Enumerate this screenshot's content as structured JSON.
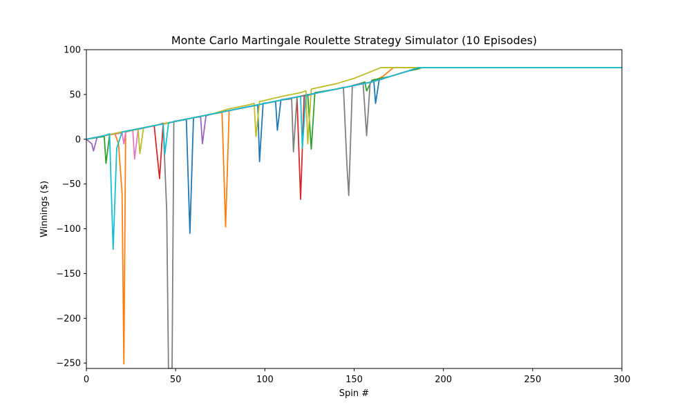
{
  "chart_data": {
    "type": "line",
    "title": "Monte Carlo Martingale Roulette Strategy Simulator (10 Episodes)",
    "xlabel": "Spin #",
    "ylabel": "Winnings ($)",
    "xlim": [
      0,
      300
    ],
    "ylim": [
      -256,
      100
    ],
    "xticks": [
      0,
      50,
      100,
      150,
      200,
      250,
      300
    ],
    "yticks": [
      -250,
      -200,
      -150,
      -100,
      -50,
      0,
      50,
      100
    ],
    "grid": false,
    "legend": "none",
    "series": [
      {
        "color": "#1f77b4",
        "points": [
          [
            0,
            0
          ],
          [
            10,
            4
          ],
          [
            20,
            8
          ],
          [
            30,
            12
          ],
          [
            40,
            16
          ],
          [
            50,
            20
          ],
          [
            56,
            22
          ],
          [
            58,
            -105
          ],
          [
            60,
            24
          ],
          [
            70,
            28
          ],
          [
            80,
            32
          ],
          [
            90,
            36
          ],
          [
            96,
            38
          ],
          [
            97,
            -25
          ],
          [
            99,
            40
          ],
          [
            106,
            42
          ],
          [
            107,
            10
          ],
          [
            109,
            44
          ],
          [
            120,
            48
          ],
          [
            130,
            52
          ],
          [
            140,
            56
          ],
          [
            150,
            60
          ],
          [
            160,
            64
          ],
          [
            161,
            66
          ],
          [
            162,
            40
          ],
          [
            164,
            66
          ],
          [
            170,
            70
          ],
          [
            180,
            76
          ],
          [
            186,
            80
          ],
          [
            300,
            80
          ]
        ]
      },
      {
        "color": "#ff7f0e",
        "points": [
          [
            0,
            0
          ],
          [
            10,
            4
          ],
          [
            16,
            6
          ],
          [
            18,
            -5
          ],
          [
            20,
            -60
          ],
          [
            21,
            -251
          ],
          [
            22,
            8
          ],
          [
            30,
            12
          ],
          [
            40,
            16
          ],
          [
            50,
            20
          ],
          [
            60,
            24
          ],
          [
            70,
            28
          ],
          [
            76,
            30
          ],
          [
            78,
            -98
          ],
          [
            80,
            32
          ],
          [
            90,
            36
          ],
          [
            100,
            40
          ],
          [
            110,
            44
          ],
          [
            120,
            48
          ],
          [
            130,
            52
          ],
          [
            140,
            56
          ],
          [
            150,
            60
          ],
          [
            160,
            64
          ],
          [
            166,
            70
          ],
          [
            172,
            80
          ],
          [
            300,
            80
          ]
        ]
      },
      {
        "color": "#2ca02c",
        "points": [
          [
            0,
            0
          ],
          [
            10,
            3
          ],
          [
            11,
            -27
          ],
          [
            13,
            5
          ],
          [
            20,
            8
          ],
          [
            30,
            12
          ],
          [
            40,
            16
          ],
          [
            50,
            20
          ],
          [
            60,
            24
          ],
          [
            70,
            28
          ],
          [
            80,
            32
          ],
          [
            90,
            36
          ],
          [
            100,
            40
          ],
          [
            110,
            44
          ],
          [
            120,
            48
          ],
          [
            124,
            50
          ],
          [
            126,
            -11
          ],
          [
            128,
            52
          ],
          [
            140,
            56
          ],
          [
            150,
            60
          ],
          [
            156,
            64
          ],
          [
            157,
            54
          ],
          [
            160,
            66
          ],
          [
            170,
            70
          ],
          [
            180,
            76
          ],
          [
            185,
            78
          ],
          [
            188,
            80
          ],
          [
            300,
            80
          ]
        ]
      },
      {
        "color": "#d62728",
        "points": [
          [
            0,
            0
          ],
          [
            10,
            4
          ],
          [
            20,
            8
          ],
          [
            30,
            12
          ],
          [
            38,
            15
          ],
          [
            41,
            -44
          ],
          [
            43,
            17
          ],
          [
            50,
            20
          ],
          [
            60,
            24
          ],
          [
            70,
            28
          ],
          [
            80,
            32
          ],
          [
            90,
            36
          ],
          [
            100,
            40
          ],
          [
            110,
            44
          ],
          [
            118,
            47
          ],
          [
            120,
            -67
          ],
          [
            122,
            48
          ],
          [
            130,
            52
          ],
          [
            140,
            56
          ],
          [
            150,
            60
          ],
          [
            160,
            64
          ],
          [
            170,
            70
          ],
          [
            180,
            76
          ],
          [
            186,
            80
          ],
          [
            300,
            80
          ]
        ]
      },
      {
        "color": "#9467bd",
        "points": [
          [
            0,
            0
          ],
          [
            3,
            -5
          ],
          [
            4,
            -13
          ],
          [
            6,
            2
          ],
          [
            10,
            4
          ],
          [
            20,
            8
          ],
          [
            30,
            12
          ],
          [
            40,
            16
          ],
          [
            50,
            20
          ],
          [
            60,
            24
          ],
          [
            64,
            25
          ],
          [
            65,
            -5
          ],
          [
            67,
            26
          ],
          [
            70,
            28
          ],
          [
            80,
            32
          ],
          [
            90,
            36
          ],
          [
            100,
            40
          ],
          [
            110,
            44
          ],
          [
            120,
            48
          ],
          [
            130,
            52
          ],
          [
            140,
            56
          ],
          [
            150,
            60
          ],
          [
            160,
            64
          ],
          [
            170,
            70
          ],
          [
            180,
            76
          ],
          [
            186,
            80
          ],
          [
            300,
            80
          ]
        ]
      },
      {
        "color": "#8c564b",
        "points": [
          [
            0,
            0
          ],
          [
            10,
            4
          ],
          [
            20,
            8
          ],
          [
            30,
            12
          ],
          [
            40,
            16
          ],
          [
            50,
            20
          ],
          [
            60,
            24
          ],
          [
            70,
            28
          ],
          [
            80,
            32
          ],
          [
            90,
            36
          ],
          [
            100,
            40
          ],
          [
            110,
            44
          ],
          [
            120,
            48
          ],
          [
            130,
            52
          ],
          [
            140,
            56
          ],
          [
            150,
            60
          ],
          [
            160,
            64
          ],
          [
            170,
            70
          ],
          [
            180,
            76
          ],
          [
            186,
            80
          ],
          [
            300,
            80
          ]
        ]
      },
      {
        "color": "#e377c2",
        "points": [
          [
            0,
            0
          ],
          [
            10,
            4
          ],
          [
            20,
            7
          ],
          [
            21,
            -5
          ],
          [
            22,
            8
          ],
          [
            26,
            10
          ],
          [
            27,
            -22
          ],
          [
            29,
            11
          ],
          [
            40,
            16
          ],
          [
            50,
            20
          ],
          [
            60,
            24
          ],
          [
            70,
            28
          ],
          [
            80,
            32
          ],
          [
            90,
            36
          ],
          [
            100,
            40
          ],
          [
            110,
            44
          ],
          [
            120,
            48
          ],
          [
            130,
            52
          ],
          [
            140,
            56
          ],
          [
            150,
            60
          ],
          [
            160,
            64
          ],
          [
            170,
            70
          ],
          [
            180,
            76
          ],
          [
            186,
            80
          ],
          [
            300,
            80
          ]
        ]
      },
      {
        "color": "#7f7f7f",
        "points": [
          [
            0,
            0
          ],
          [
            10,
            4
          ],
          [
            20,
            8
          ],
          [
            30,
            12
          ],
          [
            40,
            16
          ],
          [
            43,
            18
          ],
          [
            45,
            -80
          ],
          [
            46,
            -256
          ],
          [
            48,
            -256
          ],
          [
            49,
            20
          ],
          [
            60,
            24
          ],
          [
            70,
            28
          ],
          [
            80,
            32
          ],
          [
            90,
            36
          ],
          [
            100,
            40
          ],
          [
            110,
            44
          ],
          [
            115,
            45
          ],
          [
            116,
            -14
          ],
          [
            118,
            47
          ],
          [
            130,
            52
          ],
          [
            140,
            56
          ],
          [
            144,
            58
          ],
          [
            146,
            -30
          ],
          [
            147,
            -63
          ],
          [
            149,
            60
          ],
          [
            155,
            63
          ],
          [
            157,
            4
          ],
          [
            159,
            64
          ],
          [
            170,
            70
          ],
          [
            180,
            76
          ],
          [
            186,
            80
          ],
          [
            300,
            80
          ]
        ]
      },
      {
        "color": "#bcbd22",
        "points": [
          [
            0,
            0
          ],
          [
            10,
            4
          ],
          [
            20,
            8
          ],
          [
            29,
            11
          ],
          [
            30,
            -16
          ],
          [
            32,
            13
          ],
          [
            40,
            16
          ],
          [
            50,
            20
          ],
          [
            60,
            24
          ],
          [
            70,
            28
          ],
          [
            80,
            34
          ],
          [
            90,
            38
          ],
          [
            94,
            40
          ],
          [
            95,
            3
          ],
          [
            97,
            42
          ],
          [
            110,
            48
          ],
          [
            120,
            52
          ],
          [
            123,
            54
          ],
          [
            124,
            -5
          ],
          [
            126,
            56
          ],
          [
            140,
            62
          ],
          [
            150,
            68
          ],
          [
            160,
            76
          ],
          [
            165,
            80
          ],
          [
            300,
            80
          ]
        ]
      },
      {
        "color": "#17becf",
        "points": [
          [
            0,
            0
          ],
          [
            10,
            4
          ],
          [
            13,
            6
          ],
          [
            14,
            -60
          ],
          [
            15,
            -123
          ],
          [
            17,
            -10
          ],
          [
            20,
            8
          ],
          [
            30,
            12
          ],
          [
            40,
            16
          ],
          [
            43,
            17
          ],
          [
            44,
            -16
          ],
          [
            46,
            18
          ],
          [
            50,
            20
          ],
          [
            60,
            24
          ],
          [
            70,
            28
          ],
          [
            80,
            32
          ],
          [
            90,
            36
          ],
          [
            100,
            40
          ],
          [
            110,
            44
          ],
          [
            120,
            48
          ],
          [
            121,
            -10
          ],
          [
            123,
            49
          ],
          [
            130,
            52
          ],
          [
            140,
            56
          ],
          [
            150,
            60
          ],
          [
            160,
            64
          ],
          [
            170,
            70
          ],
          [
            180,
            76
          ],
          [
            186,
            80
          ],
          [
            300,
            80
          ]
        ]
      }
    ]
  }
}
